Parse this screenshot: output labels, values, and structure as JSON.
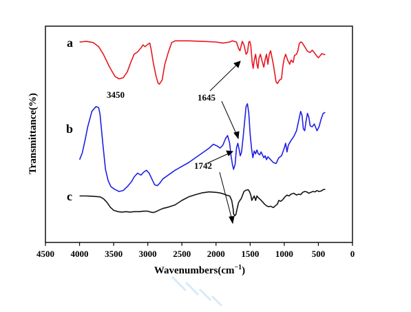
{
  "chart_data": {
    "type": "line",
    "title": "",
    "xlabel": "Wavenumbers(cm",
    "xlabel_sup": "−1",
    "xlabel_close": ")",
    "ylabel": "Transmittance(%)",
    "xlim": [
      0,
      4500
    ],
    "x_reversed": true,
    "xticks": [
      4500,
      4000,
      3500,
      3000,
      2500,
      2000,
      1500,
      1000,
      500,
      0
    ],
    "y_ticks_shown": false,
    "series": [
      {
        "name": "a",
        "color": "#e8141e",
        "points": [
          [
            4000,
            0.93
          ],
          [
            3900,
            0.94
          ],
          [
            3800,
            0.92
          ],
          [
            3720,
            0.85
          ],
          [
            3650,
            0.72
          ],
          [
            3560,
            0.5
          ],
          [
            3480,
            0.34
          ],
          [
            3420,
            0.3
          ],
          [
            3360,
            0.32
          ],
          [
            3300,
            0.42
          ],
          [
            3250,
            0.58
          ],
          [
            3200,
            0.72
          ],
          [
            3150,
            0.76
          ],
          [
            3100,
            0.83
          ],
          [
            3070,
            0.88
          ],
          [
            3040,
            0.85
          ],
          [
            3000,
            0.89
          ],
          [
            2970,
            0.91
          ],
          [
            2950,
            0.8
          ],
          [
            2920,
            0.58
          ],
          [
            2880,
            0.35
          ],
          [
            2850,
            0.23
          ],
          [
            2830,
            0.21
          ],
          [
            2790,
            0.28
          ],
          [
            2750,
            0.55
          ],
          [
            2700,
            0.75
          ],
          [
            2650,
            0.92
          ],
          [
            2600,
            0.95
          ],
          [
            2400,
            0.95
          ],
          [
            2200,
            0.94
          ],
          [
            2000,
            0.93
          ],
          [
            1900,
            0.91
          ],
          [
            1800,
            0.93
          ],
          [
            1760,
            0.95
          ],
          [
            1700,
            0.93
          ],
          [
            1670,
            0.82
          ],
          [
            1650,
            0.78
          ],
          [
            1635,
            0.85
          ],
          [
            1615,
            0.94
          ],
          [
            1590,
            0.88
          ],
          [
            1560,
            0.72
          ],
          [
            1540,
            0.75
          ],
          [
            1520,
            0.93
          ],
          [
            1505,
            0.94
          ],
          [
            1490,
            0.87
          ],
          [
            1470,
            0.58
          ],
          [
            1455,
            0.48
          ],
          [
            1440,
            0.62
          ],
          [
            1420,
            0.72
          ],
          [
            1400,
            0.55
          ],
          [
            1385,
            0.48
          ],
          [
            1370,
            0.65
          ],
          [
            1350,
            0.72
          ],
          [
            1320,
            0.58
          ],
          [
            1300,
            0.5
          ],
          [
            1280,
            0.63
          ],
          [
            1260,
            0.72
          ],
          [
            1240,
            0.55
          ],
          [
            1220,
            0.72
          ],
          [
            1200,
            0.78
          ],
          [
            1160,
            0.55
          ],
          [
            1120,
            0.25
          ],
          [
            1100,
            0.22
          ],
          [
            1070,
            0.28
          ],
          [
            1040,
            0.3
          ],
          [
            1020,
            0.52
          ],
          [
            1000,
            0.65
          ],
          [
            980,
            0.72
          ],
          [
            950,
            0.62
          ],
          [
            920,
            0.55
          ],
          [
            900,
            0.62
          ],
          [
            870,
            0.58
          ],
          [
            850,
            0.7
          ],
          [
            820,
            0.72
          ],
          [
            800,
            0.78
          ],
          [
            780,
            0.9
          ],
          [
            760,
            0.93
          ],
          [
            740,
            0.92
          ],
          [
            700,
            0.85
          ],
          [
            660,
            0.77
          ],
          [
            620,
            0.75
          ],
          [
            590,
            0.79
          ],
          [
            560,
            0.75
          ],
          [
            530,
            0.7
          ],
          [
            500,
            0.66
          ],
          [
            470,
            0.7
          ],
          [
            450,
            0.73
          ],
          [
            420,
            0.72
          ],
          [
            400,
            0.71
          ]
        ]
      },
      {
        "name": "b",
        "color": "#1e1ee6",
        "points": [
          [
            4000,
            0.38
          ],
          [
            3960,
            0.45
          ],
          [
            3920,
            0.58
          ],
          [
            3880,
            0.72
          ],
          [
            3820,
            0.88
          ],
          [
            3760,
            0.93
          ],
          [
            3720,
            0.92
          ],
          [
            3700,
            0.85
          ],
          [
            3660,
            0.55
          ],
          [
            3620,
            0.28
          ],
          [
            3580,
            0.16
          ],
          [
            3540,
            0.1
          ],
          [
            3480,
            0.07
          ],
          [
            3420,
            0.05
          ],
          [
            3360,
            0.06
          ],
          [
            3300,
            0.1
          ],
          [
            3240,
            0.15
          ],
          [
            3200,
            0.2
          ],
          [
            3150,
            0.24
          ],
          [
            3100,
            0.22
          ],
          [
            3060,
            0.25
          ],
          [
            3020,
            0.27
          ],
          [
            2980,
            0.24
          ],
          [
            2940,
            0.18
          ],
          [
            2900,
            0.12
          ],
          [
            2860,
            0.11
          ],
          [
            2820,
            0.14
          ],
          [
            2780,
            0.18
          ],
          [
            2700,
            0.22
          ],
          [
            2600,
            0.27
          ],
          [
            2500,
            0.31
          ],
          [
            2400,
            0.35
          ],
          [
            2300,
            0.4
          ],
          [
            2200,
            0.45
          ],
          [
            2100,
            0.5
          ],
          [
            2040,
            0.54
          ],
          [
            1980,
            0.52
          ],
          [
            1940,
            0.5
          ],
          [
            1900,
            0.53
          ],
          [
            1860,
            0.6
          ],
          [
            1830,
            0.63
          ],
          [
            1800,
            0.55
          ],
          [
            1780,
            0.42
          ],
          [
            1760,
            0.33
          ],
          [
            1742,
            0.28
          ],
          [
            1720,
            0.33
          ],
          [
            1700,
            0.5
          ],
          [
            1680,
            0.55
          ],
          [
            1660,
            0.48
          ],
          [
            1645,
            0.42
          ],
          [
            1625,
            0.46
          ],
          [
            1600,
            0.63
          ],
          [
            1580,
            0.78
          ],
          [
            1560,
            0.93
          ],
          [
            1540,
            0.96
          ],
          [
            1520,
            0.86
          ],
          [
            1500,
            0.65
          ],
          [
            1480,
            0.5
          ],
          [
            1460,
            0.4
          ],
          [
            1440,
            0.47
          ],
          [
            1420,
            0.44
          ],
          [
            1400,
            0.48
          ],
          [
            1380,
            0.44
          ],
          [
            1360,
            0.43
          ],
          [
            1340,
            0.46
          ],
          [
            1300,
            0.4
          ],
          [
            1280,
            0.42
          ],
          [
            1260,
            0.38
          ],
          [
            1240,
            0.41
          ],
          [
            1200,
            0.38
          ],
          [
            1160,
            0.35
          ],
          [
            1120,
            0.34
          ],
          [
            1080,
            0.4
          ],
          [
            1040,
            0.42
          ],
          [
            1000,
            0.5
          ],
          [
            980,
            0.55
          ],
          [
            960,
            0.46
          ],
          [
            940,
            0.53
          ],
          [
            900,
            0.58
          ],
          [
            860,
            0.62
          ],
          [
            820,
            0.68
          ],
          [
            790,
            0.78
          ],
          [
            760,
            0.88
          ],
          [
            740,
            0.84
          ],
          [
            720,
            0.7
          ],
          [
            700,
            0.68
          ],
          [
            680,
            0.78
          ],
          [
            660,
            0.86
          ],
          [
            640,
            0.82
          ],
          [
            620,
            0.73
          ],
          [
            590,
            0.72
          ],
          [
            560,
            0.75
          ],
          [
            520,
            0.68
          ],
          [
            490,
            0.72
          ],
          [
            460,
            0.8
          ],
          [
            430,
            0.86
          ],
          [
            400,
            0.87
          ]
        ]
      },
      {
        "name": "c",
        "color": "#111111",
        "points": [
          [
            4000,
            0.7
          ],
          [
            3900,
            0.7
          ],
          [
            3800,
            0.69
          ],
          [
            3700,
            0.68
          ],
          [
            3650,
            0.64
          ],
          [
            3600,
            0.56
          ],
          [
            3550,
            0.45
          ],
          [
            3500,
            0.38
          ],
          [
            3440,
            0.35
          ],
          [
            3380,
            0.34
          ],
          [
            3320,
            0.35
          ],
          [
            3260,
            0.34
          ],
          [
            3200,
            0.35
          ],
          [
            3120,
            0.35
          ],
          [
            3060,
            0.36
          ],
          [
            3000,
            0.36
          ],
          [
            2960,
            0.34
          ],
          [
            2920,
            0.33
          ],
          [
            2880,
            0.35
          ],
          [
            2840,
            0.38
          ],
          [
            2780,
            0.42
          ],
          [
            2700,
            0.45
          ],
          [
            2600,
            0.5
          ],
          [
            2500,
            0.6
          ],
          [
            2400,
            0.68
          ],
          [
            2300,
            0.73
          ],
          [
            2200,
            0.77
          ],
          [
            2100,
            0.79
          ],
          [
            2000,
            0.78
          ],
          [
            1950,
            0.77
          ],
          [
            1900,
            0.75
          ],
          [
            1850,
            0.72
          ],
          [
            1800,
            0.7
          ],
          [
            1770,
            0.6
          ],
          [
            1750,
            0.42
          ],
          [
            1742,
            0.3
          ],
          [
            1725,
            0.26
          ],
          [
            1710,
            0.28
          ],
          [
            1690,
            0.42
          ],
          [
            1670,
            0.55
          ],
          [
            1650,
            0.6
          ],
          [
            1630,
            0.64
          ],
          [
            1610,
            0.72
          ],
          [
            1590,
            0.8
          ],
          [
            1560,
            0.83
          ],
          [
            1530,
            0.84
          ],
          [
            1510,
            0.8
          ],
          [
            1490,
            0.72
          ],
          [
            1475,
            0.6
          ],
          [
            1460,
            0.65
          ],
          [
            1440,
            0.7
          ],
          [
            1420,
            0.6
          ],
          [
            1400,
            0.7
          ],
          [
            1380,
            0.66
          ],
          [
            1350,
            0.62
          ],
          [
            1320,
            0.57
          ],
          [
            1290,
            0.52
          ],
          [
            1260,
            0.48
          ],
          [
            1230,
            0.46
          ],
          [
            1200,
            0.47
          ],
          [
            1160,
            0.44
          ],
          [
            1130,
            0.48
          ],
          [
            1100,
            0.52
          ],
          [
            1080,
            0.6
          ],
          [
            1050,
            0.58
          ],
          [
            1020,
            0.62
          ],
          [
            990,
            0.68
          ],
          [
            960,
            0.72
          ],
          [
            930,
            0.7
          ],
          [
            900,
            0.74
          ],
          [
            860,
            0.76
          ],
          [
            820,
            0.72
          ],
          [
            790,
            0.74
          ],
          [
            760,
            0.73
          ],
          [
            730,
            0.78
          ],
          [
            700,
            0.8
          ],
          [
            670,
            0.79
          ],
          [
            640,
            0.76
          ],
          [
            610,
            0.78
          ],
          [
            580,
            0.8
          ],
          [
            550,
            0.79
          ],
          [
            520,
            0.82
          ],
          [
            490,
            0.8
          ],
          [
            460,
            0.81
          ],
          [
            430,
            0.84
          ],
          [
            400,
            0.85
          ]
        ]
      }
    ],
    "annotations": [
      {
        "text": "3450"
      },
      {
        "text": "1645"
      },
      {
        "text": "1742"
      }
    ]
  }
}
